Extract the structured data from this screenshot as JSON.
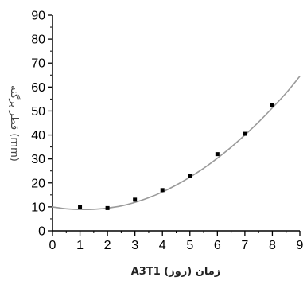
{
  "chart_data": {
    "type": "scatter",
    "xlabel": "زمان (روز) A3T1",
    "ylabel": "قطر پرگنه (mm)",
    "xlim": [
      0,
      9
    ],
    "ylim": [
      0,
      90
    ],
    "xticks": [
      "0",
      "1",
      "2",
      "3",
      "4",
      "5",
      "6",
      "7",
      "8",
      "9"
    ],
    "yticks": [
      "0",
      "10",
      "20",
      "30",
      "40",
      "50",
      "60",
      "70",
      "80",
      "90"
    ],
    "grid": false,
    "series": [
      {
        "kind": "points",
        "x": [
          1,
          2,
          3,
          4,
          5,
          6,
          7,
          8
        ],
        "y": [
          9.8,
          9.5,
          13.0,
          17.0,
          23.0,
          32.0,
          40.5,
          52.5
        ],
        "color": "#000000"
      },
      {
        "kind": "fit-curve",
        "x": [
          0,
          0.5,
          1,
          1.5,
          2,
          2.5,
          3,
          3.5,
          4,
          4.5,
          5,
          5.5,
          6,
          6.5,
          7,
          7.5,
          8,
          8.5,
          9
        ],
        "y": [
          10.0,
          9.2,
          8.9,
          9.0,
          9.5,
          10.4,
          11.9,
          13.8,
          16.2,
          19.1,
          22.4,
          26.1,
          30.3,
          34.9,
          40.0,
          45.4,
          51.3,
          57.5,
          64.5
        ],
        "color": "#9a9a9a"
      }
    ]
  }
}
